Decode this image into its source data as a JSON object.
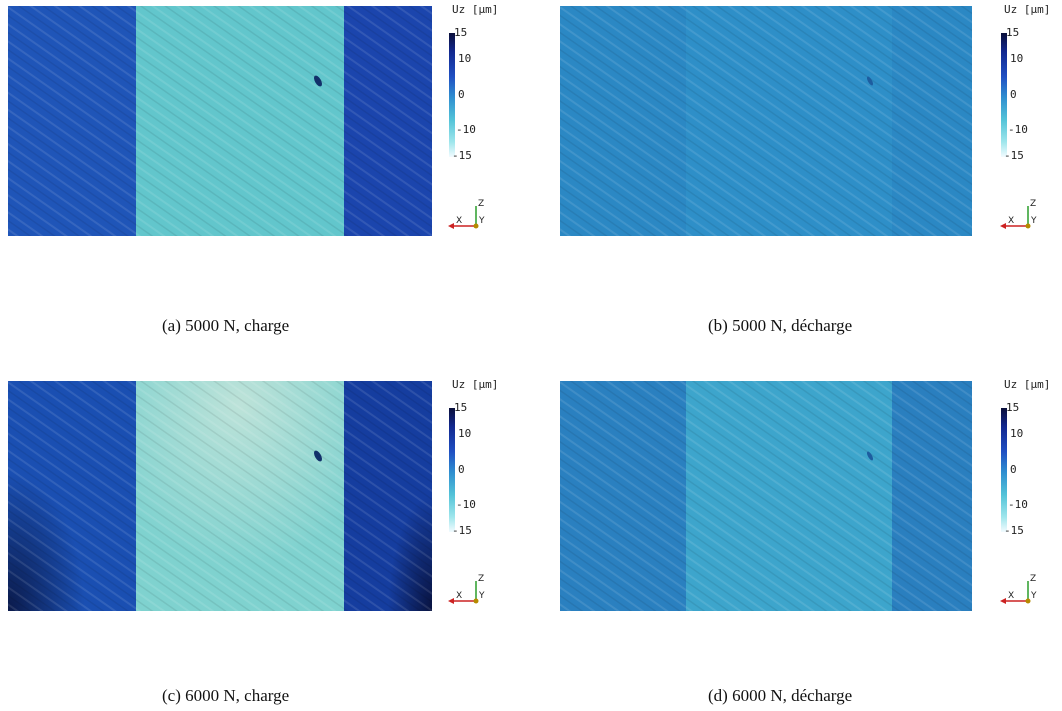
{
  "colormap": [
    "#0a0f3a",
    "#12288f",
    "#1f4fc2",
    "#2f8fd0",
    "#53c3d8",
    "#9fe6ec",
    "#f2fbff"
  ],
  "colorbar": {
    "title": "Uz [μm]",
    "ticks": [
      "15",
      "10",
      "0",
      "-10",
      "-15"
    ]
  },
  "axis_triad": {
    "x_label": "X",
    "y_label": "Y",
    "z_label": "Z"
  },
  "panels": [
    {
      "caption": "(a)  5000 N, charge",
      "left_color": "#1f55b8",
      "center_color": "#62c6cc",
      "right_color": "#1b45ad"
    },
    {
      "caption": "(b)  5000 N, décharge",
      "left_color": "#2b88c4",
      "center_color": "#2e8fc8",
      "right_color": "#2b88c4"
    },
    {
      "caption": "(c)  6000 N, charge",
      "left_color": "#1a4fb2",
      "center_color": "#7fd2cf",
      "right_color": "#153d9f"
    },
    {
      "caption": "(d)  6000 N, décharge",
      "left_color": "#2a80c0",
      "center_color": "#3da5cc",
      "right_color": "#2a7fbf"
    }
  ]
}
